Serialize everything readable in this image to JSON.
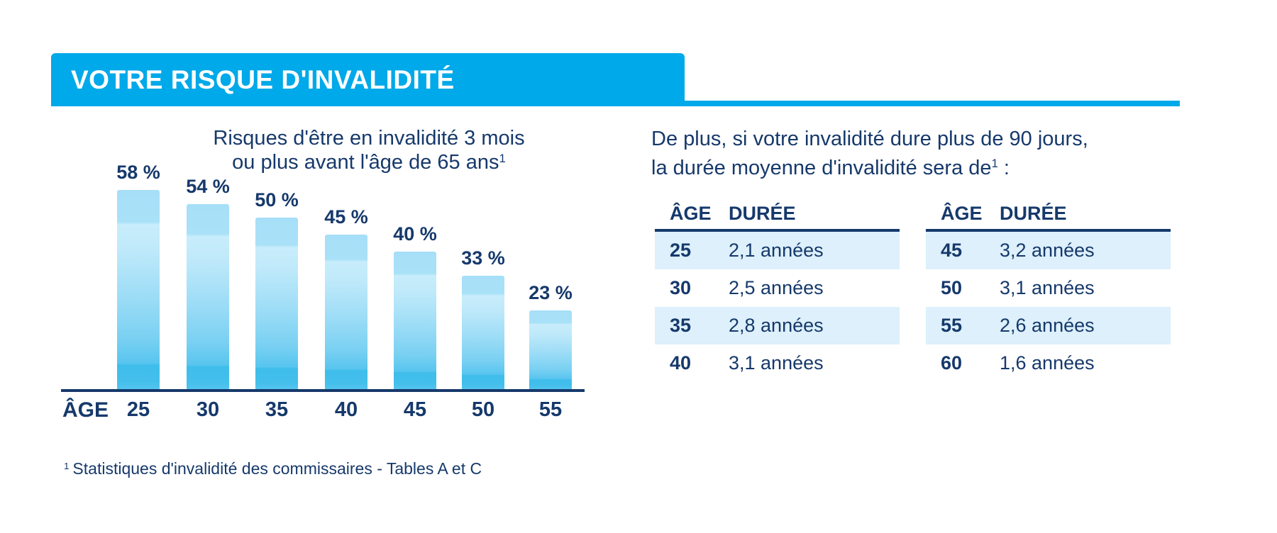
{
  "colors": {
    "accent_cyan": "#00A9E9",
    "navy_text": "#16396B",
    "table_row_alt": "#DDF0FB",
    "bar_gradient_top": "#A6DFF7",
    "bar_gradient_bottom": "#3FBDEB"
  },
  "header": {
    "title": "VOTRE RISQUE D'INVALIDITÉ"
  },
  "chart_data": {
    "type": "bar",
    "title_line1": "Risques d'être en invalidité  3 mois",
    "title_line2": "ou plus avant l'âge de 65 ans",
    "title_sup": "1",
    "x_axis_label": "ÂGE",
    "categories": [
      "25",
      "30",
      "35",
      "40",
      "45",
      "50",
      "55"
    ],
    "values": [
      58,
      54,
      50,
      45,
      40,
      33,
      23
    ],
    "value_labels": [
      "58 %",
      "54 %",
      "50 %",
      "45 %",
      "40 %",
      "33 %",
      "23 %"
    ],
    "unit": "%",
    "ylim": [
      0,
      62
    ],
    "grid": false,
    "legend": false
  },
  "aside": {
    "intro_line1": "De plus, si votre invalidité dure plus de 90 jours,",
    "intro_line2_pre": "la durée moyenne d'invalidité sera de",
    "intro_sup": "1",
    "intro_line2_post": " :"
  },
  "tables": [
    {
      "headers": [
        "ÂGE",
        "DURÉE"
      ],
      "rows": [
        [
          "25",
          "2,1 années"
        ],
        [
          "30",
          "2,5 années"
        ],
        [
          "35",
          "2,8 années"
        ],
        [
          "40",
          "3,1 années"
        ]
      ]
    },
    {
      "headers": [
        "ÂGE",
        "DURÉE"
      ],
      "rows": [
        [
          "45",
          "3,2 années"
        ],
        [
          "50",
          "3,1 années"
        ],
        [
          "55",
          "2,6 années"
        ],
        [
          "60",
          "1,6 années"
        ]
      ]
    }
  ],
  "footnote": {
    "marker": "1",
    "text": "Statistiques d'invalidité des commissaires - Tables A et C"
  }
}
